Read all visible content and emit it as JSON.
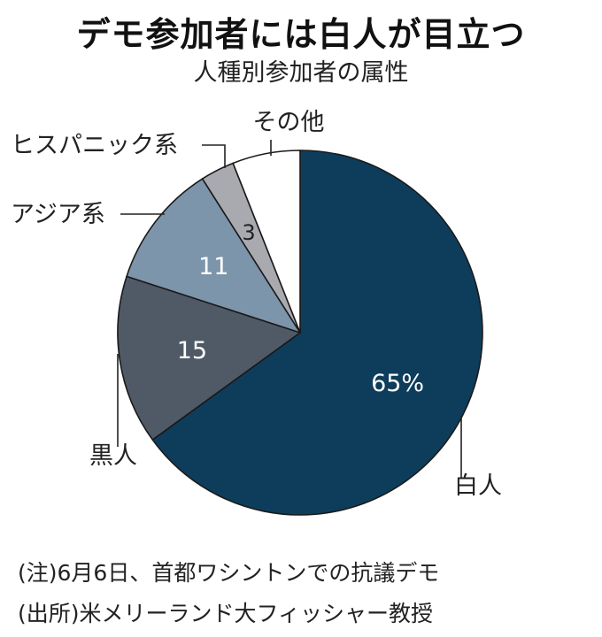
{
  "chart_data": {
    "type": "pie",
    "title": "デモ参加者には白人が目立つ",
    "subtitle": "人種別参加者の属性",
    "slices": [
      {
        "label": "白人",
        "value": 65,
        "value_label": "65%",
        "color": "#0e3d5c"
      },
      {
        "label": "黒人",
        "value": 15,
        "value_label": "15",
        "color": "#505a67"
      },
      {
        "label": "アジア系",
        "value": 11,
        "value_label": "11",
        "color": "#7d95aa"
      },
      {
        "label": "ヒスパニック系",
        "value": 3,
        "value_label": "3",
        "color": "#a9a9b0"
      },
      {
        "label": "その他",
        "value": 6,
        "value_label": "",
        "color": "#ffffff"
      }
    ]
  },
  "notes": {
    "note1": "(注)6月6日、首都ワシントンでの抗議デモ",
    "note2": "(出所)米メリーランド大フィッシャー教授"
  }
}
